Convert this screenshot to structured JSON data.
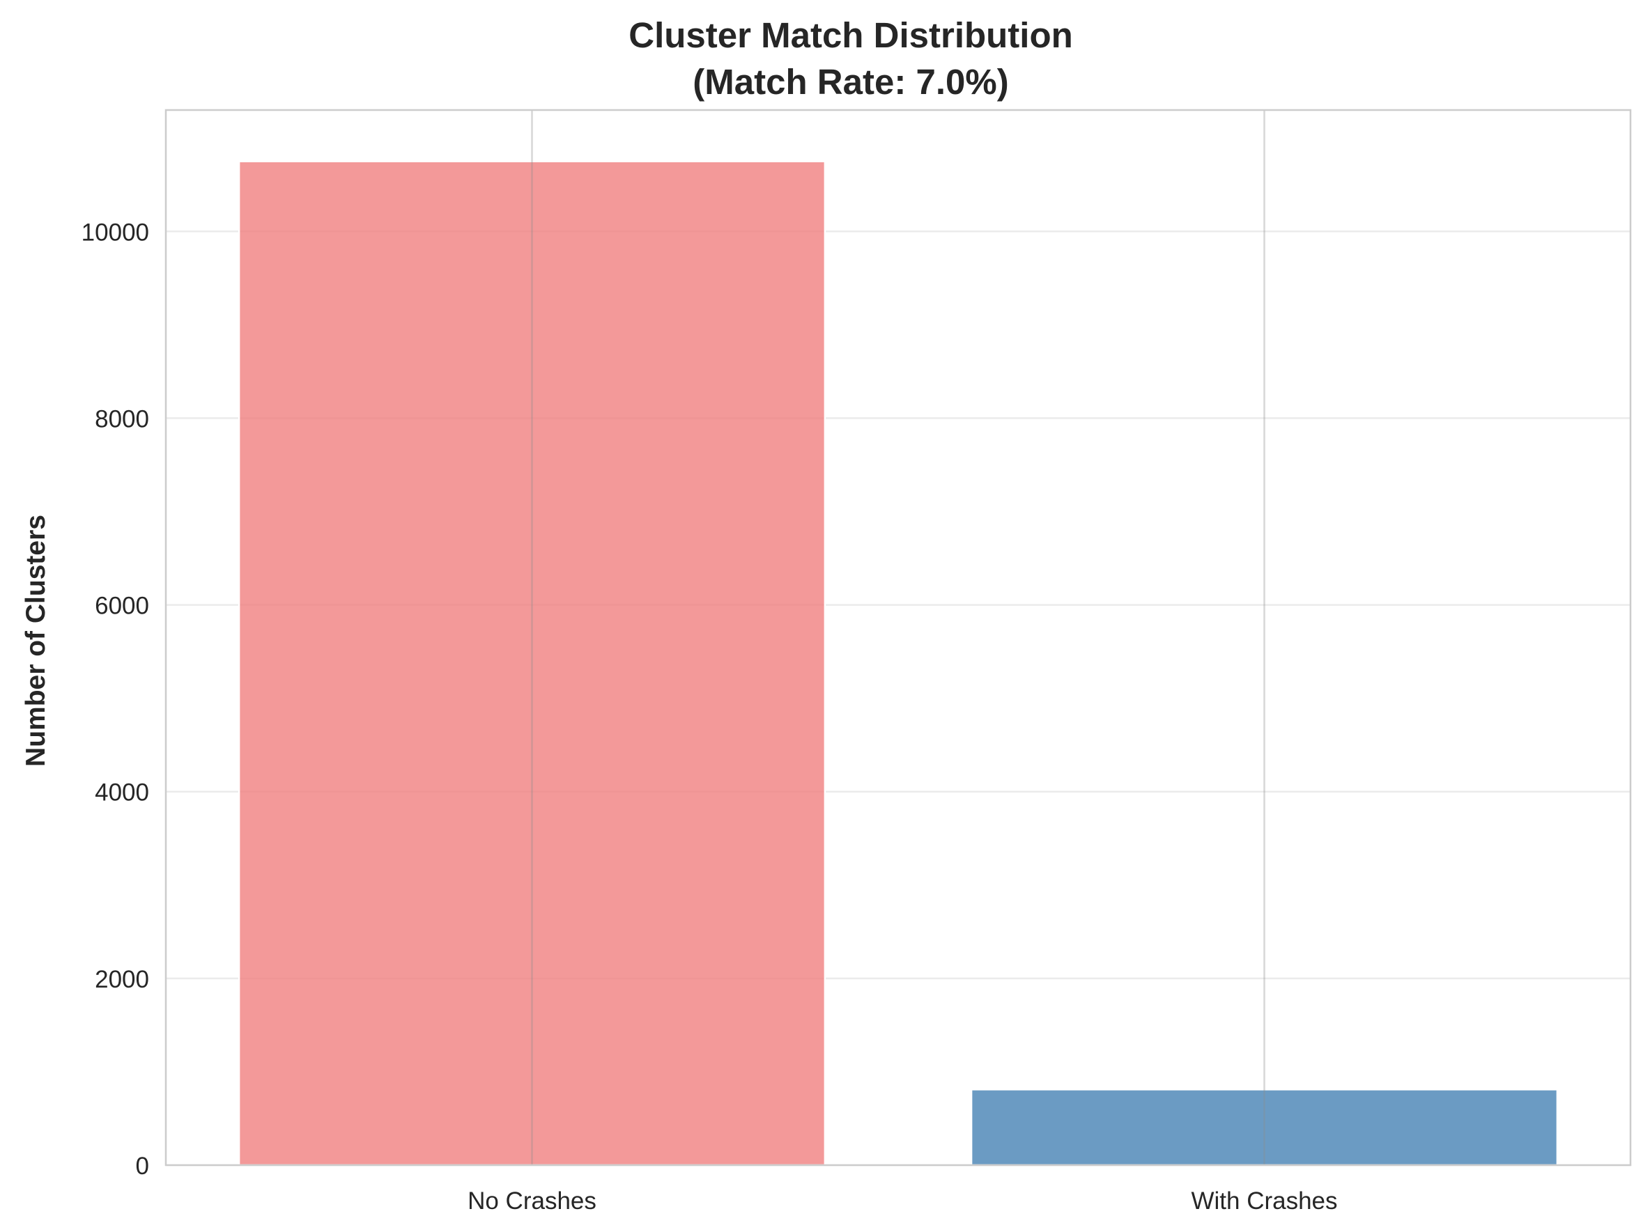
{
  "chart_data": {
    "type": "bar",
    "title": "Cluster Match Distribution",
    "subtitle": "(Match Rate: 7.0%)",
    "xlabel": "",
    "ylabel": "Number of Clusters",
    "categories": [
      "No Crashes",
      "With Crashes"
    ],
    "values": [
      10750,
      810
    ],
    "colors": [
      "#f08080",
      "#4682b4"
    ],
    "ylim": [
      0,
      11300
    ],
    "yticks": [
      0,
      2000,
      4000,
      6000,
      8000,
      10000
    ],
    "ytick_labels": [
      "0",
      "2000",
      "4000",
      "6000",
      "8000",
      "10000"
    ],
    "grid": true,
    "legend": false
  }
}
